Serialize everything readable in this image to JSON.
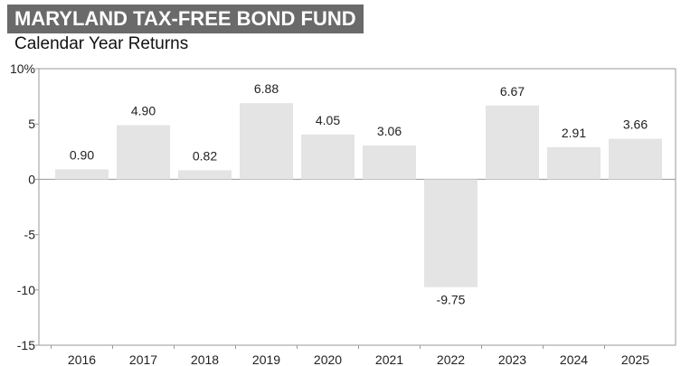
{
  "header": {
    "title": "MARYLAND TAX-FREE BOND FUND",
    "subtitle": "Calendar Year Returns"
  },
  "colors": {
    "bar_fill": "#e4e4e4",
    "axis": "#9a9a9a",
    "title_background": "#6a6a6a",
    "title_text": "#ffffff"
  },
  "chart_data": {
    "type": "bar",
    "title": "MARYLAND TAX-FREE BOND FUND",
    "subtitle": "Calendar Year Returns",
    "categories": [
      "2016",
      "2017",
      "2018",
      "2019",
      "2020",
      "2021",
      "2022",
      "2023",
      "2024",
      "2025"
    ],
    "values": [
      0.9,
      4.9,
      0.82,
      6.88,
      4.05,
      3.06,
      -9.75,
      6.67,
      2.91,
      3.66
    ],
    "value_labels": [
      "0.90",
      "4.90",
      "0.82",
      "6.88",
      "4.05",
      "3.06",
      "-9.75",
      "6.67",
      "2.91",
      "3.66"
    ],
    "ylim": [
      -15,
      10
    ],
    "yticks": [
      10,
      5,
      0,
      -5,
      -10,
      -15
    ],
    "ytick_labels": [
      "10%",
      "5",
      "0",
      "-5",
      "-10",
      "-15"
    ],
    "xlabel": "",
    "ylabel": "",
    "grid": false,
    "legend": "none"
  }
}
